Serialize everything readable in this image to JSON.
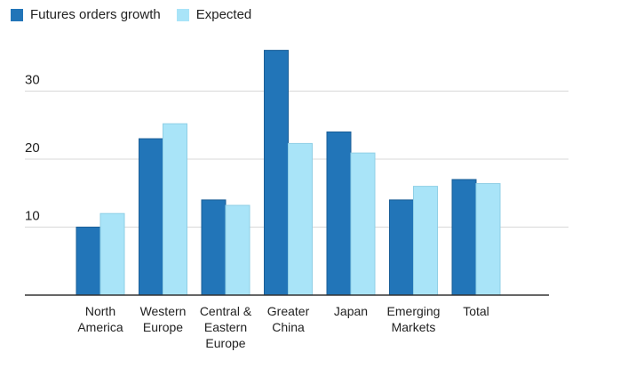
{
  "chart_data": {
    "type": "bar",
    "categories": [
      [
        "North",
        "America"
      ],
      [
        "Western",
        "Europe"
      ],
      [
        "Central &",
        "Eastern",
        "Europe"
      ],
      [
        "Greater",
        "China"
      ],
      [
        "Japan"
      ],
      [
        "Emerging",
        "Markets"
      ],
      [
        "Total"
      ]
    ],
    "series": [
      {
        "name": "Futures orders growth",
        "color": "#2275b8",
        "values": [
          10,
          23,
          14,
          36,
          24,
          14,
          17
        ]
      },
      {
        "name": "Expected",
        "color": "#a9e4f8",
        "values": [
          12,
          25.2,
          13.2,
          22.3,
          20.9,
          16,
          16.4
        ]
      }
    ],
    "yticks": [
      10,
      20,
      30
    ],
    "ylim": [
      0,
      40
    ],
    "grid": true,
    "legend_position": "top-left"
  }
}
